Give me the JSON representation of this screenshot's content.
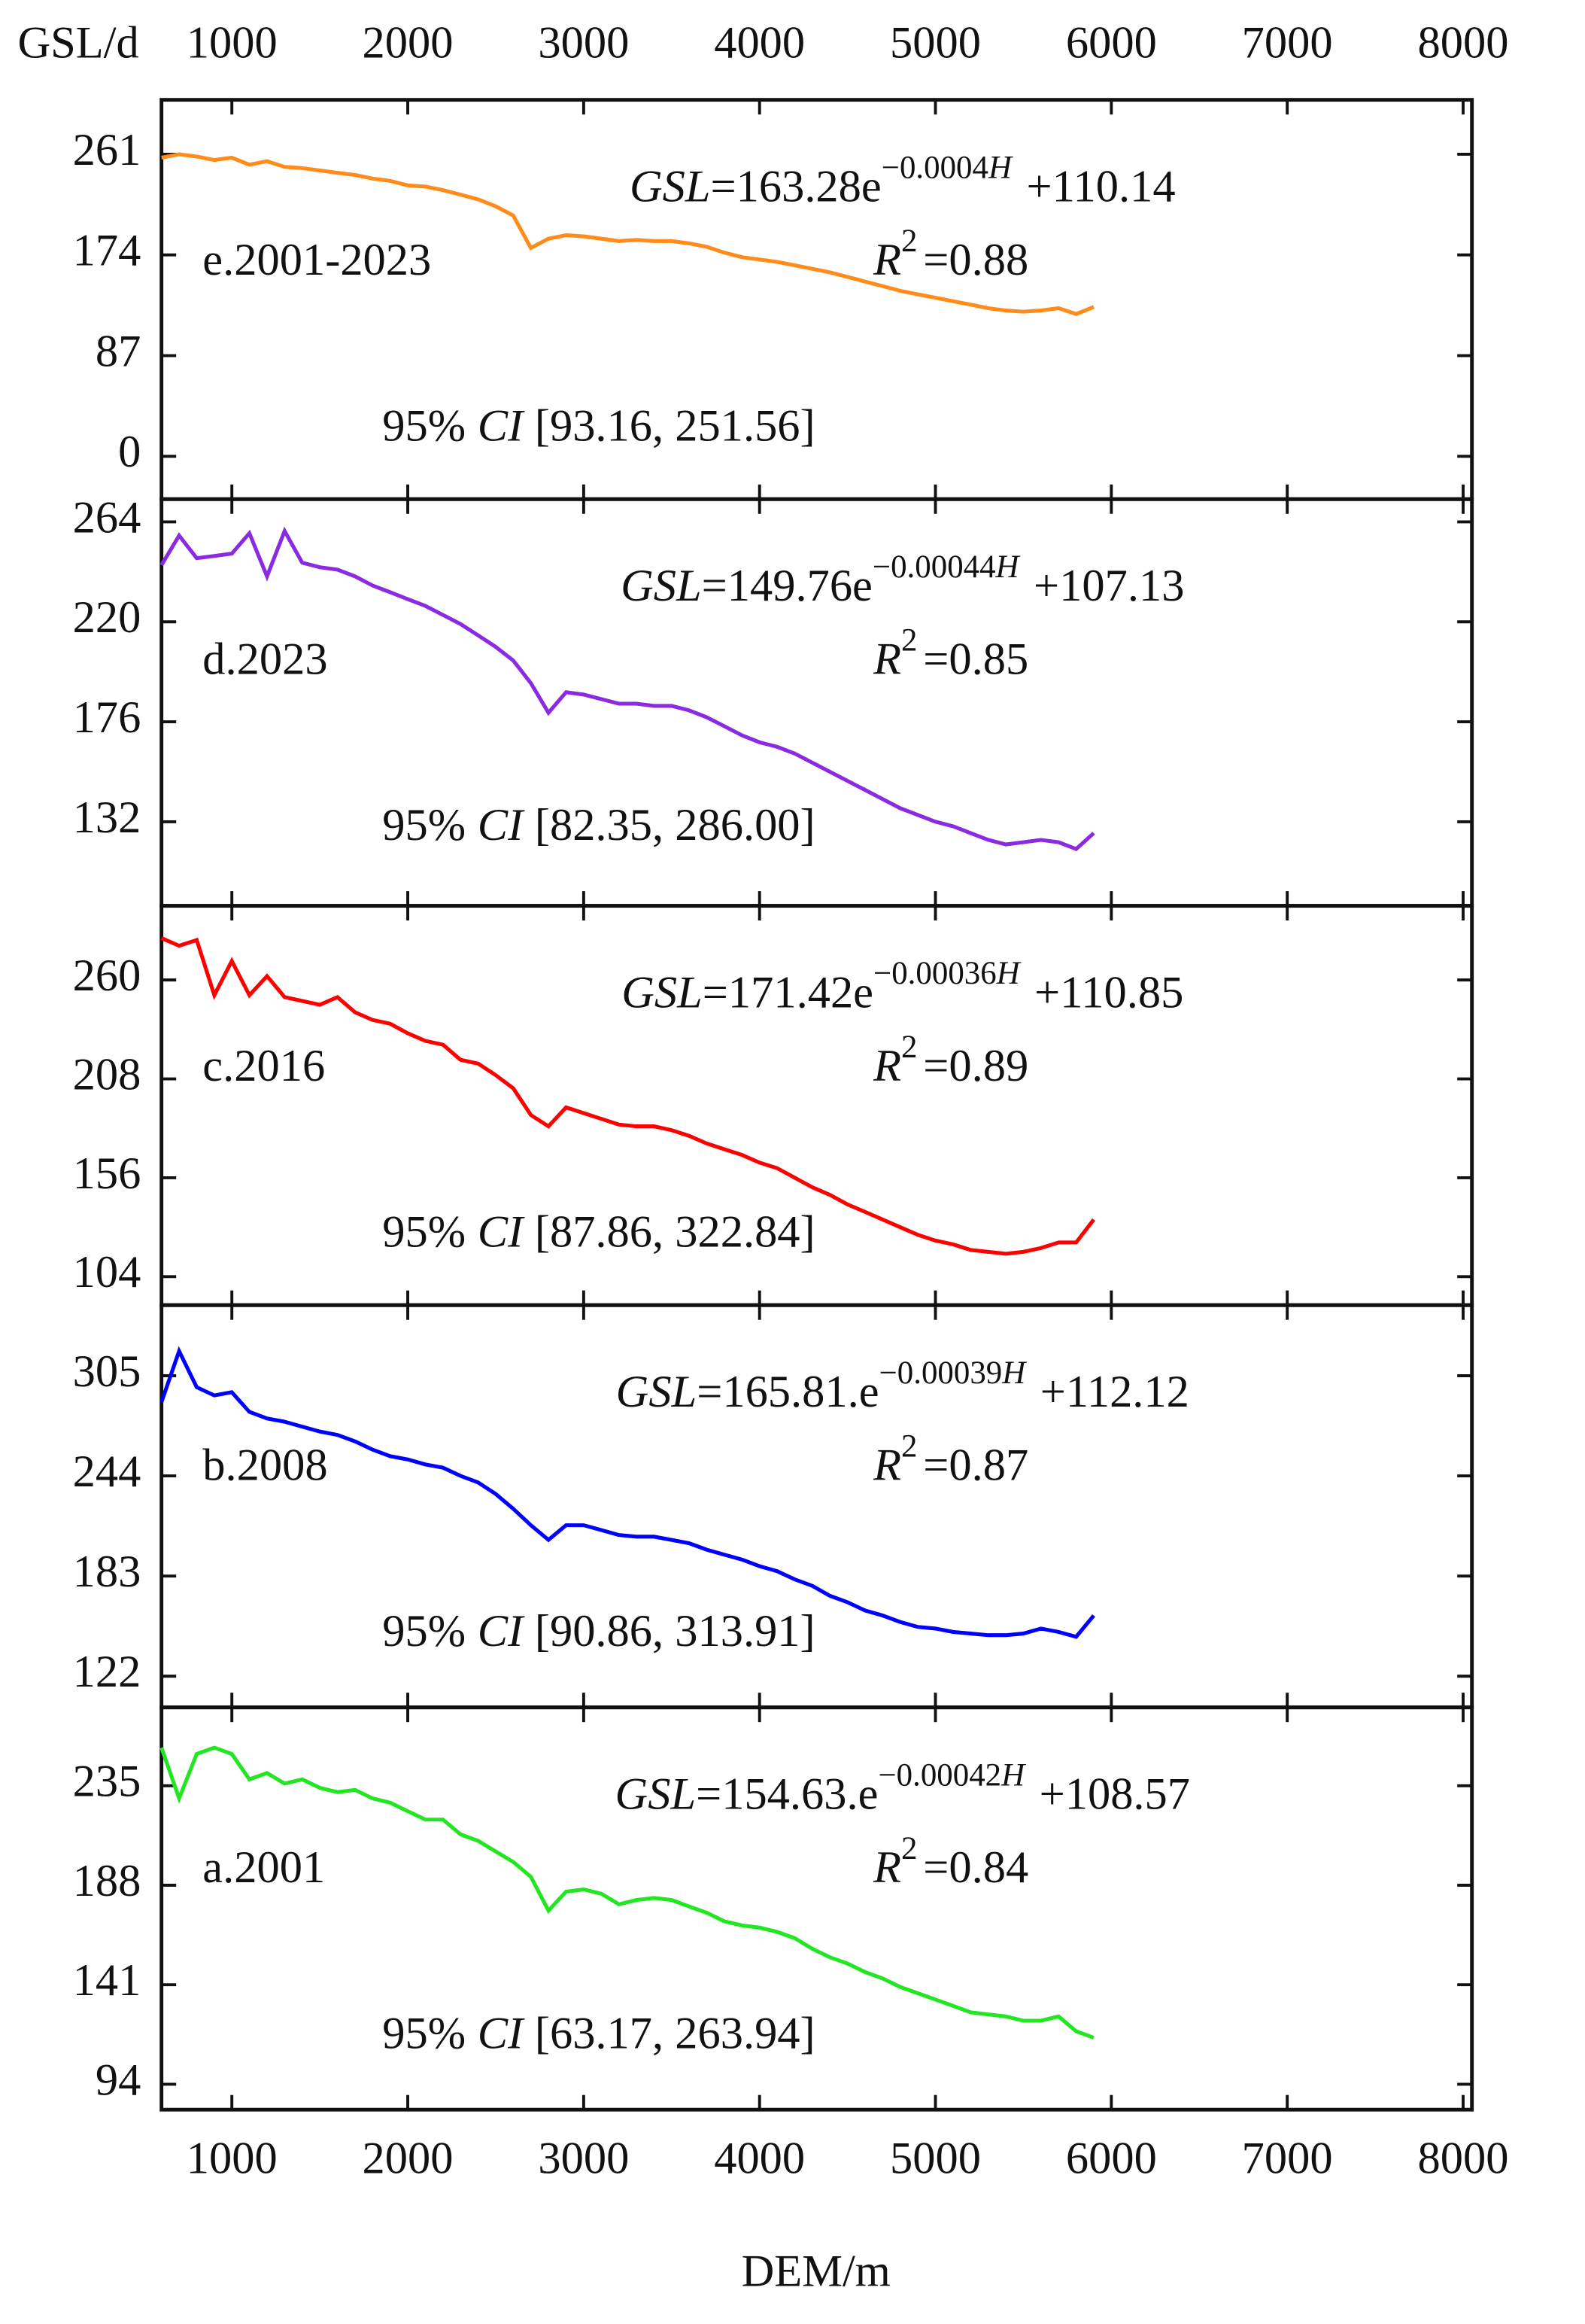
{
  "chart_data": [
    {
      "type": "line",
      "label": "e.2001-2023",
      "ylabel": "GSL/d",
      "equation": {
        "lhs": "GSL",
        "coef": "=163.28e",
        "exponent": "−0.0004",
        "exponent_var": "H",
        "constant": "+110.14"
      },
      "r2": {
        "symbol": "R",
        "power": "2",
        "value": "=0.88"
      },
      "ci": {
        "prefix": "95%",
        "var": "CI",
        "interval": "[93.16, 251.56]"
      },
      "xlim": [
        600,
        8050
      ],
      "xticks": [
        1000,
        2000,
        3000,
        4000,
        5000,
        6000,
        7000,
        8000
      ],
      "ylim": [
        -37,
        308
      ],
      "yticks": [
        0,
        87,
        174,
        261
      ],
      "x": [
        600,
        700,
        800,
        900,
        1000,
        1100,
        1200,
        1300,
        1400,
        1500,
        1600,
        1700,
        1800,
        1900,
        2000,
        2100,
        2200,
        2300,
        2400,
        2500,
        2600,
        2700,
        2800,
        2900,
        3000,
        3100,
        3200,
        3300,
        3400,
        3500,
        3600,
        3700,
        3800,
        3900,
        4000,
        4100,
        4200,
        4300,
        4400,
        4500,
        4600,
        4700,
        4800,
        4900,
        5000,
        5100,
        5200,
        5300,
        5400,
        5500,
        5600,
        5700,
        5800,
        5900
      ],
      "series": [
        {
          "color": "#ff8c1a",
          "values": [
            258,
            261,
            259,
            256,
            258,
            252,
            255,
            250,
            249,
            247,
            245,
            243,
            240,
            238,
            234,
            233,
            230,
            226,
            222,
            216,
            208,
            180,
            188,
            191,
            190,
            188,
            186,
            187,
            186,
            186,
            184,
            181,
            176,
            172,
            170,
            168,
            165,
            162,
            159,
            155,
            151,
            147,
            143,
            140,
            137,
            134,
            131,
            128,
            126,
            125,
            126,
            128,
            123,
            129
          ]
        }
      ]
    },
    {
      "type": "line",
      "label": "d.2023",
      "equation": {
        "lhs": "GSL",
        "coef": "=149.76e",
        "exponent": "−0.00044",
        "exponent_var": "H",
        "constant": "+107.13"
      },
      "r2": {
        "symbol": "R",
        "power": "2",
        "value": "=0.85"
      },
      "ci": {
        "prefix": "95%",
        "var": "CI",
        "interval": "[82.35, 286.00]"
      },
      "xlim": [
        600,
        8050
      ],
      "xticks": [
        1000,
        2000,
        3000,
        4000,
        5000,
        6000,
        7000,
        8000
      ],
      "ylim": [
        95,
        274
      ],
      "yticks": [
        132,
        176,
        220,
        264
      ],
      "x": [
        600,
        700,
        800,
        900,
        1000,
        1100,
        1200,
        1300,
        1400,
        1500,
        1600,
        1700,
        1800,
        1900,
        2000,
        2100,
        2200,
        2300,
        2400,
        2500,
        2600,
        2700,
        2800,
        2900,
        3000,
        3100,
        3200,
        3300,
        3400,
        3500,
        3600,
        3700,
        3800,
        3900,
        4000,
        4100,
        4200,
        4300,
        4400,
        4500,
        4600,
        4700,
        4800,
        4900,
        5000,
        5100,
        5200,
        5300,
        5400,
        5500,
        5600,
        5700,
        5800,
        5900
      ],
      "series": [
        {
          "color": "#8a2be2",
          "values": [
            245,
            258,
            248,
            249,
            250,
            259,
            240,
            260,
            246,
            244,
            243,
            240,
            236,
            233,
            230,
            227,
            223,
            219,
            214,
            209,
            203,
            193,
            180,
            189,
            188,
            186,
            184,
            184,
            183,
            183,
            181,
            178,
            174,
            170,
            167,
            165,
            162,
            158,
            154,
            150,
            146,
            142,
            138,
            135,
            132,
            130,
            127,
            124,
            122,
            123,
            124,
            123,
            120,
            127
          ]
        }
      ]
    },
    {
      "type": "line",
      "label": "c.2016",
      "equation": {
        "lhs": "GSL",
        "coef": "=171.42e",
        "exponent": "−0.00036",
        "exponent_var": "H",
        "constant": "+110.85"
      },
      "r2": {
        "symbol": "R",
        "power": "2",
        "value": "=0.89"
      },
      "ci": {
        "prefix": "95%",
        "var": "CI",
        "interval": "[87.86, 322.84]"
      },
      "xlim": [
        600,
        8050
      ],
      "xticks": [
        1000,
        2000,
        3000,
        4000,
        5000,
        6000,
        7000,
        8000
      ],
      "ylim": [
        89,
        299
      ],
      "yticks": [
        104,
        156,
        208,
        260
      ],
      "x": [
        600,
        700,
        800,
        900,
        1000,
        1100,
        1200,
        1300,
        1400,
        1500,
        1600,
        1700,
        1800,
        1900,
        2000,
        2100,
        2200,
        2300,
        2400,
        2500,
        2600,
        2700,
        2800,
        2900,
        3000,
        3100,
        3200,
        3300,
        3400,
        3500,
        3600,
        3700,
        3800,
        3900,
        4000,
        4100,
        4200,
        4300,
        4400,
        4500,
        4600,
        4700,
        4800,
        4900,
        5000,
        5100,
        5200,
        5300,
        5400,
        5500,
        5600,
        5700,
        5800,
        5900
      ],
      "series": [
        {
          "color": "#ff0000",
          "values": [
            282,
            278,
            281,
            252,
            270,
            252,
            262,
            251,
            249,
            247,
            251,
            243,
            239,
            237,
            232,
            228,
            226,
            218,
            216,
            210,
            203,
            189,
            183,
            193,
            190,
            187,
            184,
            183,
            183,
            181,
            178,
            174,
            171,
            168,
            164,
            161,
            156,
            151,
            147,
            142,
            138,
            134,
            130,
            126,
            123,
            121,
            118,
            117,
            116,
            117,
            119,
            122,
            122,
            134
          ]
        }
      ]
    },
    {
      "type": "line",
      "label": "b.2008",
      "equation": {
        "lhs": "GSL",
        "coef": "=165.81.e",
        "exponent": "−0.00039",
        "exponent_var": "H",
        "constant": "+112.12"
      },
      "r2": {
        "symbol": "R",
        "power": "2",
        "value": "=0.87"
      },
      "ci": {
        "prefix": "95%",
        "var": "CI",
        "interval": "[90.86, 313.91]"
      },
      "xlim": [
        600,
        8050
      ],
      "xticks": [
        1000,
        2000,
        3000,
        4000,
        5000,
        6000,
        7000,
        8000
      ],
      "ylim": [
        103,
        348
      ],
      "yticks": [
        122,
        183,
        244,
        305
      ],
      "x": [
        600,
        700,
        800,
        900,
        1000,
        1100,
        1200,
        1300,
        1400,
        1500,
        1600,
        1700,
        1800,
        1900,
        2000,
        2100,
        2200,
        2300,
        2400,
        2500,
        2600,
        2700,
        2800,
        2900,
        3000,
        3100,
        3200,
        3300,
        3400,
        3500,
        3600,
        3700,
        3800,
        3900,
        4000,
        4100,
        4200,
        4300,
        4400,
        4500,
        4600,
        4700,
        4800,
        4900,
        5000,
        5100,
        5200,
        5300,
        5400,
        5500,
        5600,
        5700,
        5800,
        5900
      ],
      "series": [
        {
          "color": "#0000ff",
          "values": [
            289,
            320,
            298,
            293,
            295,
            283,
            279,
            277,
            274,
            271,
            269,
            265,
            260,
            256,
            254,
            251,
            249,
            244,
            240,
            233,
            224,
            214,
            205,
            214,
            214,
            211,
            208,
            207,
            207,
            205,
            203,
            199,
            196,
            193,
            189,
            186,
            181,
            177,
            171,
            167,
            162,
            159,
            155,
            152,
            151,
            149,
            148,
            147,
            147,
            148,
            151,
            149,
            146,
            159
          ]
        }
      ]
    },
    {
      "type": "line",
      "label": "a.2001",
      "xlabel": "DEM/m",
      "equation": {
        "lhs": "GSL",
        "coef": "=154.63.e",
        "exponent": "−0.00042",
        "exponent_var": "H",
        "constant": "+108.57"
      },
      "r2": {
        "symbol": "R",
        "power": "2",
        "value": "=0.84"
      },
      "ci": {
        "prefix": "95%",
        "var": "CI",
        "interval": "[63.17, 263.94]"
      },
      "xlim": [
        600,
        8050
      ],
      "xticks": [
        1000,
        2000,
        3000,
        4000,
        5000,
        6000,
        7000,
        8000
      ],
      "ylim": [
        82,
        272
      ],
      "yticks": [
        94,
        141,
        188,
        235
      ],
      "x": [
        600,
        700,
        800,
        900,
        1000,
        1100,
        1200,
        1300,
        1400,
        1500,
        1600,
        1700,
        1800,
        1900,
        2000,
        2100,
        2200,
        2300,
        2400,
        2500,
        2600,
        2700,
        2800,
        2900,
        3000,
        3100,
        3200,
        3300,
        3400,
        3500,
        3600,
        3700,
        3800,
        3900,
        4000,
        4100,
        4200,
        4300,
        4400,
        4500,
        4600,
        4700,
        4800,
        4900,
        5000,
        5100,
        5200,
        5300,
        5400,
        5500,
        5600,
        5700,
        5800,
        5900
      ],
      "series": [
        {
          "color": "#22e622",
          "values": [
            253,
            229,
            250,
            253,
            250,
            238,
            241,
            236,
            238,
            234,
            232,
            233,
            229,
            227,
            223,
            219,
            219,
            212,
            209,
            204,
            199,
            192,
            176,
            185,
            186,
            184,
            179,
            181,
            182,
            181,
            178,
            175,
            171,
            169,
            168,
            166,
            163,
            158,
            154,
            151,
            147,
            144,
            140,
            137,
            134,
            131,
            128,
            127,
            126,
            124,
            124,
            126,
            119,
            116
          ]
        }
      ]
    }
  ]
}
